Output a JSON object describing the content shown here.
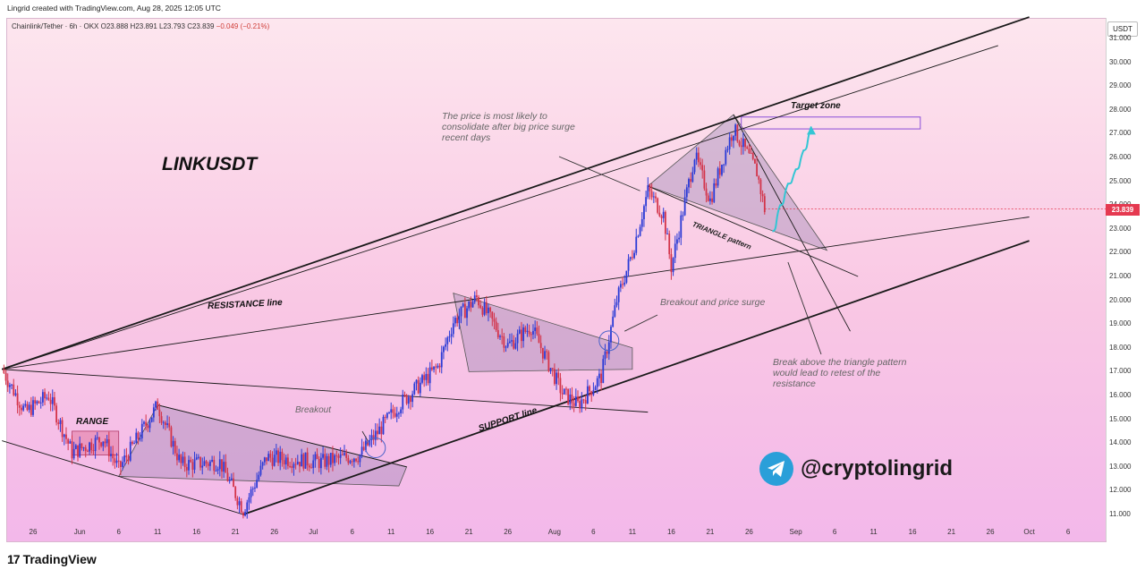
{
  "header": {
    "credit": "Lingrid created with TradingView.com, Aug 28, 2025 12:05 UTC",
    "symbol_line": "Chainlink/Tether · 6h · OKX",
    "ohlc_open": "O23.888",
    "ohlc_high": "H23.891",
    "ohlc_low": "L23.793",
    "ohlc_close": "C23.839",
    "change": "−0.049 (−0.21%)"
  },
  "axis": {
    "currency": "USDT",
    "current_price": "23.839"
  },
  "annotations": {
    "title": "LINKUSDT",
    "resistance": "RESISTANCE line",
    "support": "SUPPORT line",
    "range": "RANGE",
    "breakout": "Breakout",
    "breakout_surge": "Breakout and price surge",
    "triangle": "TRIANGLE pattern",
    "target_zone": "Target zone",
    "note_consolidate": "The price is most likely to consolidate after big price surge recent days",
    "note_retest": "Break above the triangle pattern would lead to retest of the resistance"
  },
  "brand": {
    "handle": "@cryptolingrid",
    "platform": "TradingView",
    "icon": "telegram-icon"
  },
  "colors": {
    "bullish": "#2b3bd6",
    "bearish": "#d3344a",
    "trendline": "#1a1a1a",
    "projection": "#33c6d4",
    "target_box": "#8a4fd8",
    "price_tag": "#e53950"
  },
  "chart_data": {
    "type": "candlestick",
    "title": "",
    "xlabel": "",
    "ylabel": "",
    "ylim": [
      10.6,
      31.8
    ],
    "y_ticks": [
      "31.000",
      "30.000",
      "29.000",
      "28.000",
      "27.000",
      "26.000",
      "25.000",
      "24.000",
      "23.000",
      "22.000",
      "21.000",
      "20.000",
      "19.000",
      "18.000",
      "17.000",
      "16.000",
      "15.000",
      "14.000",
      "13.000",
      "12.000",
      "11.000"
    ],
    "x_ticks": [
      "26",
      "Jun",
      "6",
      "11",
      "16",
      "21",
      "26",
      "Jul",
      "6",
      "11",
      "16",
      "21",
      "26",
      "Aug",
      "6",
      "11",
      "16",
      "21",
      "26",
      "Sep",
      "6",
      "11",
      "16",
      "21",
      "26",
      "Oct",
      "6"
    ],
    "candle_interval": "6h",
    "series": [
      {
        "name": "Chainlink/Tether",
        "approx_close_path": [
          [
            "2025-05-22",
            17.1
          ],
          [
            "2025-05-25",
            15.3
          ],
          [
            "2025-05-28",
            16.0
          ],
          [
            "2025-05-31",
            13.6
          ],
          [
            "2025-06-04",
            14.2
          ],
          [
            "2025-06-06",
            12.9
          ],
          [
            "2025-06-11",
            15.6
          ],
          [
            "2025-06-14",
            13.1
          ],
          [
            "2025-06-19",
            13.2
          ],
          [
            "2025-06-22",
            11.2
          ],
          [
            "2025-06-25",
            13.4
          ],
          [
            "2025-07-02",
            13.2
          ],
          [
            "2025-07-07",
            13.5
          ],
          [
            "2025-07-12",
            15.6
          ],
          [
            "2025-07-17",
            17.2
          ],
          [
            "2025-07-19",
            19.1
          ],
          [
            "2025-07-22",
            20.1
          ],
          [
            "2025-07-26",
            18.1
          ],
          [
            "2025-07-29",
            18.9
          ],
          [
            "2025-08-02",
            16.1
          ],
          [
            "2025-08-04",
            15.6
          ],
          [
            "2025-08-07",
            16.8
          ],
          [
            "2025-08-09",
            20.0
          ],
          [
            "2025-08-11",
            22.0
          ],
          [
            "2025-08-13",
            24.6
          ],
          [
            "2025-08-15",
            23.6
          ],
          [
            "2025-08-16",
            21.4
          ],
          [
            "2025-08-19",
            26.1
          ],
          [
            "2025-08-21",
            24.2
          ],
          [
            "2025-08-23",
            26.3
          ],
          [
            "2025-08-24",
            27.2
          ],
          [
            "2025-08-27",
            25.4
          ],
          [
            "2025-08-28",
            23.84
          ]
        ]
      }
    ],
    "projection_path": [
      [
        "2025-08-29",
        22.9
      ],
      [
        "2025-08-30",
        24.0
      ],
      [
        "2025-08-31",
        24.9
      ],
      [
        "2025-09-01",
        25.5
      ],
      [
        "2025-09-02",
        26.3
      ],
      [
        "2025-09-03",
        27.3
      ]
    ],
    "target_zone": [
      27.2,
      27.7
    ],
    "current_price": 23.839
  }
}
